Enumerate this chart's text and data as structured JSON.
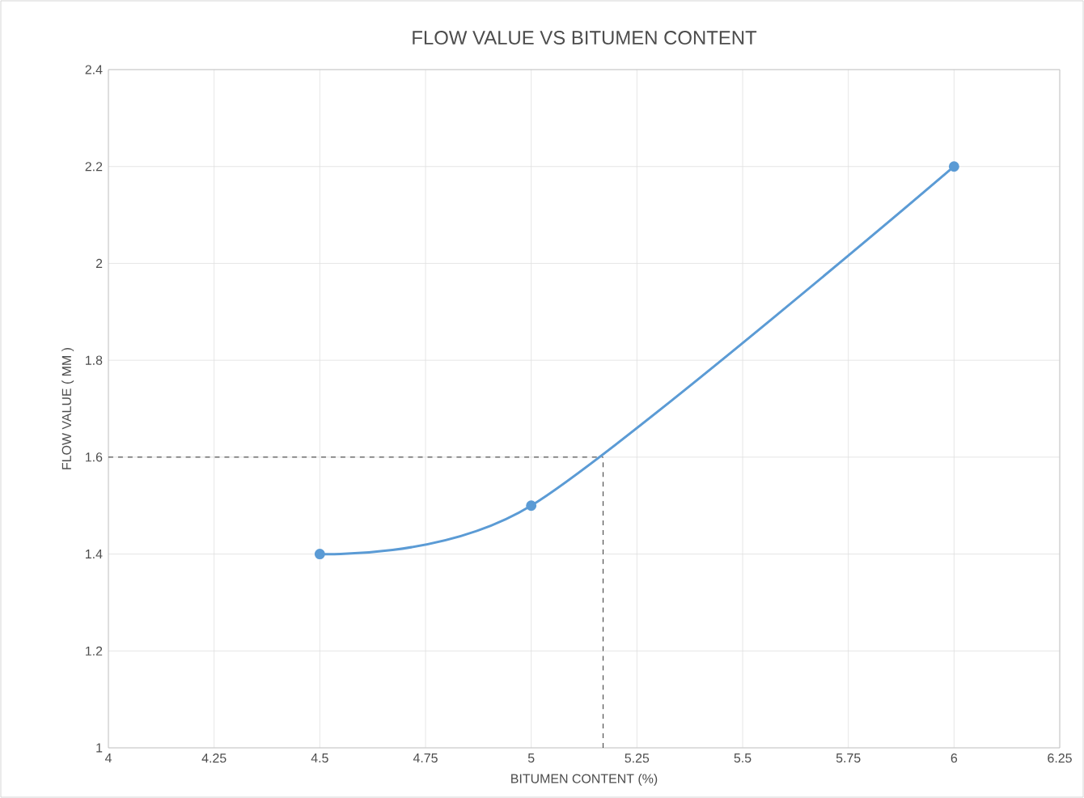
{
  "chart_data": {
    "type": "line",
    "title": "FLOW VALUE VS BITUMEN CONTENT",
    "xlabel": "BITUMEN CONTENT (%)",
    "ylabel": "FLOW VALUE ( MM )",
    "x": [
      4.5,
      5,
      6
    ],
    "series": [
      {
        "color": "#5b9bd5",
        "values": [
          1.4,
          1.5,
          2.2
        ]
      }
    ],
    "xlim": [
      4,
      6.25
    ],
    "xticks": [
      4,
      4.25,
      4.5,
      4.75,
      5,
      5.25,
      5.5,
      5.75,
      6,
      6.25
    ],
    "ylim": [
      1,
      2.4
    ],
    "yticks": [
      1,
      1.2,
      1.4,
      1.6,
      1.8,
      2,
      2.2,
      2.4
    ],
    "grid": true,
    "marker": "circle",
    "line_style": "solid",
    "ref_lines": [
      {
        "axis": "y",
        "value": 1.6,
        "color": "#000000",
        "line_style": "dashed"
      },
      {
        "axis": "x",
        "value": 5.17,
        "color": "#000000",
        "line_style": "dashed"
      }
    ]
  }
}
